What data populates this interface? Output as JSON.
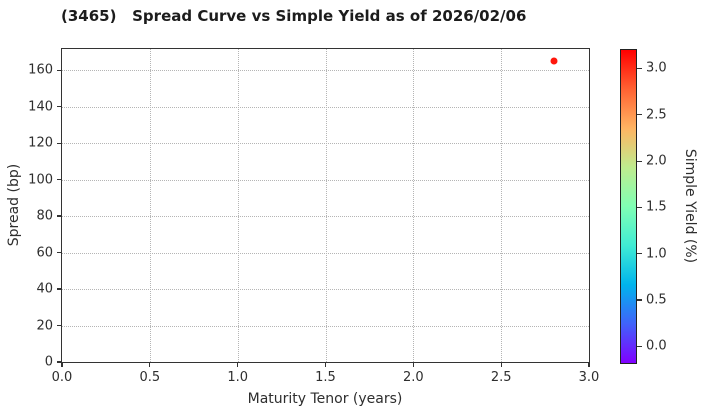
{
  "page": {
    "background": "#ffffff"
  },
  "chart_data": {
    "type": "scatter",
    "title": "(3465)   Spread Curve vs Simple Yield as of 2026/02/06",
    "xlabel": "Maturity Tenor (years)",
    "ylabel": "Spread (bp)",
    "xlim": [
      0.0,
      3.0
    ],
    "ylim": [
      0,
      171.6
    ],
    "grid": {
      "on": true,
      "style": "dotted",
      "color": "#b5b5b5"
    },
    "axis_color": "#333333",
    "xticks": [
      {
        "value": 0.0,
        "label": "0.0"
      },
      {
        "value": 0.5,
        "label": "0.5"
      },
      {
        "value": 1.0,
        "label": "1.0"
      },
      {
        "value": 1.5,
        "label": "1.5"
      },
      {
        "value": 2.0,
        "label": "2.0"
      },
      {
        "value": 2.5,
        "label": "2.5"
      },
      {
        "value": 3.0,
        "label": "3.0"
      }
    ],
    "yticks": [
      {
        "value": 0,
        "label": "0"
      },
      {
        "value": 20,
        "label": "20"
      },
      {
        "value": 40,
        "label": "40"
      },
      {
        "value": 60,
        "label": "60"
      },
      {
        "value": 80,
        "label": "80"
      },
      {
        "value": 100,
        "label": "100"
      },
      {
        "value": 120,
        "label": "120"
      },
      {
        "value": 140,
        "label": "140"
      },
      {
        "value": 160,
        "label": "160"
      }
    ],
    "points": [
      {
        "x": 2.8,
        "y": 165,
        "simple_yield": 3.1,
        "color": "#ff170c",
        "size": 7
      }
    ],
    "colorbar": {
      "label": "Simple Yield (%)",
      "colormap": "rainbow",
      "cmin": -0.19,
      "cmax": 3.21,
      "ticks": [
        {
          "value": 3.0,
          "label": "3.0"
        },
        {
          "value": 2.5,
          "label": "2.5"
        },
        {
          "value": 2.0,
          "label": "2.0"
        },
        {
          "value": 1.5,
          "label": "1.5"
        },
        {
          "value": 1.0,
          "label": "1.0"
        },
        {
          "value": 0.5,
          "label": "0.5"
        },
        {
          "value": 0.0,
          "label": "0.0"
        }
      ],
      "gradient_bottom_to_top": [
        {
          "pos": 0,
          "color": "#8000ff"
        },
        {
          "pos": 12.5,
          "color": "#4062fa"
        },
        {
          "pos": 25,
          "color": "#00b4ec"
        },
        {
          "pos": 37.5,
          "color": "#40ecd4"
        },
        {
          "pos": 50,
          "color": "#80ffb4"
        },
        {
          "pos": 62.5,
          "color": "#bfec8e"
        },
        {
          "pos": 75,
          "color": "#ffb462"
        },
        {
          "pos": 87.5,
          "color": "#ff6232"
        },
        {
          "pos": 100,
          "color": "#ff0000"
        }
      ]
    }
  }
}
